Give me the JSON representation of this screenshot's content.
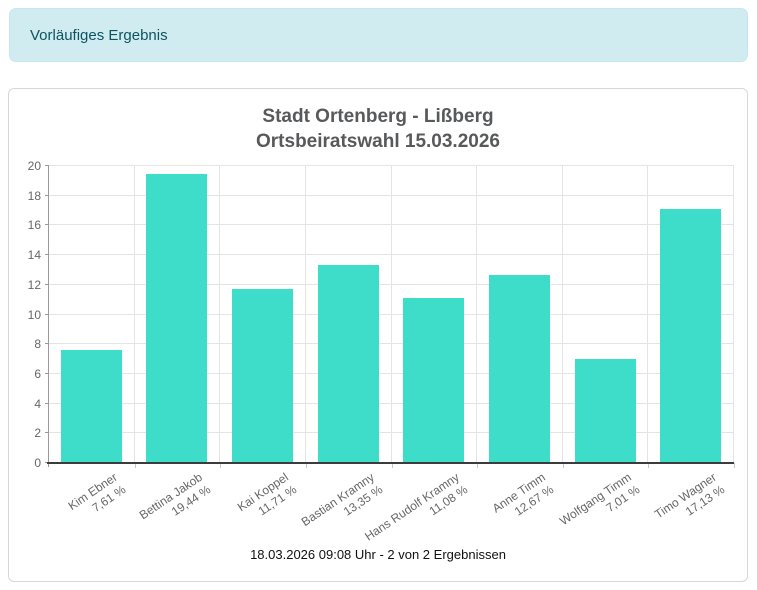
{
  "alert": {
    "text": "Vorläufiges Ergebnis"
  },
  "colors": {
    "bar": "#3eddca",
    "alert_background": "#d1ecf1",
    "alert_text": "#0c5460",
    "title_text": "#58595b",
    "axis_line": "#3c3c3c",
    "gridline": "#e4e4e4"
  },
  "chart_data": {
    "type": "bar",
    "title": "Stadt Ortenberg - Lißberg Ortsbeiratswahl 15.03.2026",
    "title_lines": [
      "Stadt Ortenberg - Lißberg",
      "Ortsbeiratswahl 15.03.2026"
    ],
    "categories": [
      "Kim Ebner",
      "Bettina Jakob",
      "Kai Koppel",
      "Bastian Kramny",
      "Hans Rudolf Kramny",
      "Anne Timm",
      "Wolfgang Timm",
      "Timo Wagner"
    ],
    "values": [
      7.61,
      19.44,
      11.71,
      13.35,
      11.08,
      12.67,
      7.01,
      17.13
    ],
    "value_labels": [
      "7,61 %",
      "19,44 %",
      "11,71 %",
      "13,35 %",
      "11,08 %",
      "12,67 %",
      "7,01 %",
      "17,13 %"
    ],
    "xlabel": "",
    "ylabel": "",
    "ylim": [
      0,
      20
    ],
    "ytick_step": 2,
    "grid": true,
    "legend": "none",
    "bar_color": "#3eddca"
  },
  "footer": {
    "text": "18.03.2026 09:08 Uhr - 2 von 2 Ergebnissen"
  }
}
